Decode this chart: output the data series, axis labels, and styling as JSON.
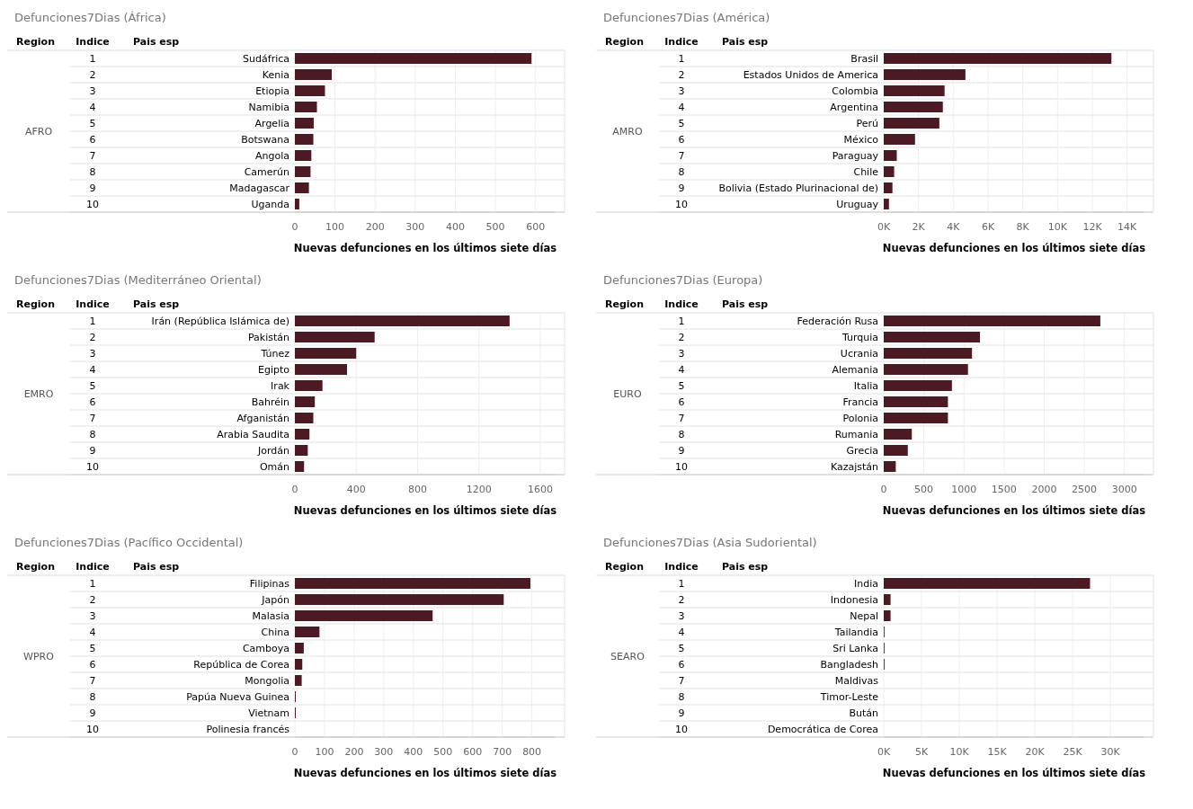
{
  "chart_data": [
    {
      "type": "bar",
      "orientation": "horizontal",
      "title": "Defunciones7Dias (África)",
      "xlabel": "Nuevas defunciones en los últimos siete días",
      "color": "#4b1a22",
      "grid": "x",
      "categories": [
        "Sudáfrica",
        "Kenia",
        "Etiopia",
        "Namibia",
        "Argelia",
        "Botswana",
        "Angola",
        "Camerún",
        "Madagascar",
        "Uganda"
      ],
      "values": [
        590,
        92,
        75,
        55,
        47,
        46,
        41,
        39,
        35,
        11
      ],
      "xlim": [
        0,
        650
      ],
      "xticks": [
        0,
        100,
        200,
        300,
        400,
        500,
        600
      ],
      "annotations": [
        "Region",
        "Indice",
        "Pais esp",
        "AFRO",
        "1",
        "2",
        "3",
        "4",
        "5",
        "6",
        "7",
        "8",
        "9",
        "10"
      ]
    },
    {
      "type": "bar",
      "orientation": "horizontal",
      "title": "Defunciones7Dias (América)",
      "xlabel": "Nuevas defunciones en los últimos siete días",
      "color": "#4b1a22",
      "grid": "x",
      "categories": [
        "Brasil",
        "Estados Unidos de America",
        "Colombia",
        "Argentina",
        "Perú",
        "México",
        "Paraguay",
        "Chile",
        "Bolivia (Estado Plurinacional de)",
        "Uruguay"
      ],
      "values": [
        13100,
        4700,
        3500,
        3400,
        3200,
        1800,
        750,
        600,
        500,
        300
      ],
      "xlim": [
        0,
        15000
      ],
      "xticks": [
        {
          "value": 0,
          "label": "0K"
        },
        {
          "value": 2000,
          "label": "2K"
        },
        {
          "value": 4000,
          "label": "4K"
        },
        {
          "value": 6000,
          "label": "6K"
        },
        {
          "value": 8000,
          "label": "8K"
        },
        {
          "value": 10000,
          "label": "10K"
        },
        {
          "value": 12000,
          "label": "12K"
        },
        {
          "value": 14000,
          "label": "14K"
        }
      ],
      "annotations": [
        "Region",
        "Indice",
        "Pais esp",
        "AMRO",
        "1",
        "2",
        "3",
        "4",
        "5",
        "6",
        "7",
        "8",
        "9",
        "10"
      ]
    },
    {
      "type": "bar",
      "orientation": "horizontal",
      "title": "Defunciones7Dias (Mediterráneo Oriental)",
      "xlabel": "Nuevas defunciones en los últimos siete días",
      "color": "#4b1a22",
      "grid": "x",
      "categories": [
        "Irán (República Islámica de)",
        "Pakistán",
        "Túnez",
        "Egipto",
        "Irak",
        "Bahréin",
        "Afganistán",
        "Arabia Saudita",
        "Jordán",
        "Omán"
      ],
      "values": [
        1400,
        520,
        400,
        340,
        180,
        130,
        120,
        95,
        84,
        60
      ],
      "xlim": [
        0,
        1700
      ],
      "xticks": [
        0,
        400,
        800,
        1200,
        1600
      ],
      "annotations": [
        "Region",
        "Indice",
        "Pais esp",
        "EMRO",
        "1",
        "2",
        "3",
        "4",
        "5",
        "6",
        "7",
        "8",
        "9",
        "10"
      ]
    },
    {
      "type": "bar",
      "orientation": "horizontal",
      "title": "Defunciones7Dias (Europa)",
      "xlabel": "Nuevas defunciones en los últimos siete días",
      "color": "#4b1a22",
      "grid": "x",
      "categories": [
        "Federación Rusa",
        "Turquia",
        "Ucrania",
        "Alemania",
        "Italia",
        "Francia",
        "Polonia",
        "Rumania",
        "Grecia",
        "Kazajstán"
      ],
      "values": [
        2700,
        1200,
        1100,
        1050,
        850,
        800,
        800,
        350,
        300,
        150
      ],
      "xlim": [
        0,
        3250
      ],
      "xticks": [
        0,
        500,
        1000,
        1500,
        2000,
        2500,
        3000
      ],
      "annotations": [
        "Region",
        "Indice",
        "Pais esp",
        "EURO",
        "1",
        "2",
        "3",
        "4",
        "5",
        "6",
        "7",
        "8",
        "9",
        "10"
      ]
    },
    {
      "type": "bar",
      "orientation": "horizontal",
      "title": "Defunciones7Dias (Pacífico Occidental)",
      "xlabel": "Nuevas defunciones en los últimos siete días",
      "color": "#4b1a22",
      "grid": "x",
      "categories": [
        "Filipinas",
        "Japón",
        "Malasia",
        "China",
        "Camboya",
        "República de Corea",
        "Mongolia",
        "Papúa Nueva Guinea",
        "Vietnam",
        "Polinesia francés"
      ],
      "values": [
        795,
        705,
        465,
        83,
        30,
        25,
        23,
        3,
        3,
        0
      ],
      "xlim": [
        0,
        880
      ],
      "xticks": [
        0,
        100,
        200,
        300,
        400,
        500,
        600,
        700,
        800
      ],
      "annotations": [
        "Region",
        "Indice",
        "Pais esp",
        "WPRO",
        "1",
        "2",
        "3",
        "4",
        "5",
        "6",
        "7",
        "8",
        "9",
        "10"
      ]
    },
    {
      "type": "bar",
      "orientation": "horizontal",
      "title": "Defunciones7Dias (Asia Sudoriental)",
      "xlabel": "Nuevas defunciones en los últimos siete días",
      "color": "#4b1a22",
      "grid": "x",
      "categories": [
        "India",
        "Indonesia",
        "Nepal",
        "Tailandia",
        "Sri Lanka",
        "Bangladesh",
        "Maldivas",
        "Timor-Leste",
        "Bután",
        "Democrática de Corea"
      ],
      "values": [
        27300,
        900,
        900,
        100,
        100,
        100,
        0,
        0,
        0,
        0
      ],
      "xlim": [
        0,
        34500
      ],
      "xticks": [
        {
          "value": 0,
          "label": "0K"
        },
        {
          "value": 5000,
          "label": "5K"
        },
        {
          "value": 10000,
          "label": "10K"
        },
        {
          "value": 15000,
          "label": "15K"
        },
        {
          "value": 20000,
          "label": "20K"
        },
        {
          "value": 25000,
          "label": "25K"
        },
        {
          "value": 30000,
          "label": "30K"
        }
      ],
      "annotations": [
        "Region",
        "Indice",
        "Pais esp",
        "SEARO",
        "1",
        "2",
        "3",
        "4",
        "5",
        "6",
        "7",
        "8",
        "9",
        "10"
      ]
    }
  ]
}
